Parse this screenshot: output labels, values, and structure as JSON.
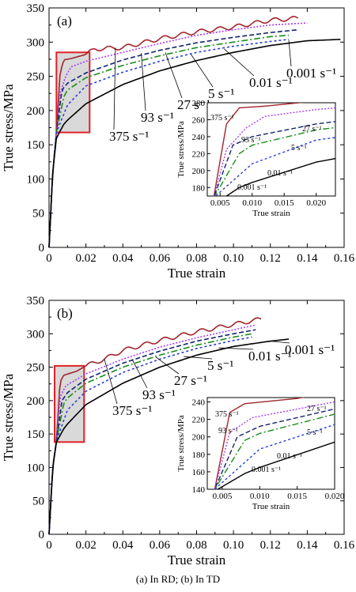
{
  "caption": "(a) In RD; (b) In TD",
  "chart_data": [
    {
      "type": "line",
      "panel_label": "(a)",
      "xlabel": "True strain",
      "ylabel": "True stress/MPa",
      "xlim": [
        0,
        0.16
      ],
      "ylim": [
        0,
        350
      ],
      "x_ticks": [
        "0",
        "0.02",
        "0.04",
        "0.06",
        "0.08",
        "0.10",
        "0.12",
        "0.14",
        "0.16"
      ],
      "y_ticks": [
        "0",
        "50",
        "100",
        "150",
        "200",
        "250",
        "300",
        "350"
      ],
      "highlight_box": {
        "x": [
          0.004,
          0.022
        ],
        "y": [
          168,
          285
        ]
      },
      "series": [
        {
          "name": "375 s⁻¹",
          "color": "#a0262c",
          "dash": "",
          "label": "375 s⁻¹",
          "points": [
            [
              0,
              0
            ],
            [
              0.002,
              110
            ],
            [
              0.004,
              168
            ],
            [
              0.006,
              255
            ],
            [
              0.008,
              274
            ],
            [
              0.012,
              276
            ],
            [
              0.02,
              282
            ],
            [
              0.025,
              290
            ],
            [
              0.04,
              292
            ],
            [
              0.06,
              305
            ],
            [
              0.08,
              315
            ],
            [
              0.1,
              322
            ],
            [
              0.12,
              332
            ],
            [
              0.135,
              335
            ]
          ],
          "wavy": true
        },
        {
          "name": "93 s⁻¹",
          "color": "#a73cf2",
          "dash": "2,2",
          "label": "93 s⁻¹",
          "points": [
            [
              0,
              0
            ],
            [
              0.002,
              110
            ],
            [
              0.004,
              168
            ],
            [
              0.006,
              225
            ],
            [
              0.009,
              250
            ],
            [
              0.012,
              264
            ],
            [
              0.02,
              272
            ],
            [
              0.04,
              285
            ],
            [
              0.06,
              298
            ],
            [
              0.08,
              310
            ],
            [
              0.1,
              318
            ],
            [
              0.12,
              325
            ],
            [
              0.14,
              328
            ]
          ]
        },
        {
          "name": "27 s⁻¹",
          "color": "#14236e",
          "dash": "6,3",
          "label": "27 s⁻¹",
          "points": [
            [
              0,
              0
            ],
            [
              0.002,
              110
            ],
            [
              0.004,
              168
            ],
            [
              0.007,
              230
            ],
            [
              0.01,
              240
            ],
            [
              0.02,
              255
            ],
            [
              0.04,
              274
            ],
            [
              0.06,
              288
            ],
            [
              0.08,
              299
            ],
            [
              0.1,
              307
            ],
            [
              0.12,
              314
            ],
            [
              0.135,
              318
            ]
          ]
        },
        {
          "name": "5 s⁻¹",
          "color": "#1a8c1a",
          "dash": "8,3,2,3",
          "label": "5 s⁻¹",
          "points": [
            [
              0,
              0
            ],
            [
              0.002,
              110
            ],
            [
              0.004,
              168
            ],
            [
              0.008,
              220
            ],
            [
              0.01,
              230
            ],
            [
              0.02,
              248
            ],
            [
              0.04,
              266
            ],
            [
              0.06,
              280
            ],
            [
              0.08,
              292
            ],
            [
              0.1,
              300
            ],
            [
              0.12,
              308
            ],
            [
              0.13,
              310
            ]
          ]
        },
        {
          "name": "0.01 s⁻¹",
          "color": "#2a3fd8",
          "dash": "3,3",
          "label": "0.01 s⁻¹",
          "points": [
            [
              0,
              0
            ],
            [
              0.002,
              110
            ],
            [
              0.004,
              168
            ],
            [
              0.01,
              208
            ],
            [
              0.02,
              236
            ],
            [
              0.04,
              256
            ],
            [
              0.06,
              272
            ],
            [
              0.08,
              285
            ],
            [
              0.1,
              294
            ],
            [
              0.12,
              301
            ],
            [
              0.13,
              304
            ]
          ]
        },
        {
          "name": "0.001 s⁻¹",
          "color": "#000000",
          "dash": "",
          "label": "0.001 s⁻¹",
          "points": [
            [
              0,
              0
            ],
            [
              0.002,
              110
            ],
            [
              0.004,
              160
            ],
            [
              0.008,
              180
            ],
            [
              0.01,
              186
            ],
            [
              0.02,
              210
            ],
            [
              0.04,
              238
            ],
            [
              0.06,
              258
            ],
            [
              0.08,
              273
            ],
            [
              0.1,
              285
            ],
            [
              0.12,
              295
            ],
            [
              0.14,
              302
            ],
            [
              0.158,
              304
            ]
          ]
        }
      ],
      "inset": {
        "xlabel": "True strain",
        "ylabel": "True stress/MPa",
        "xlim": [
          0.003,
          0.023
        ],
        "ylim": [
          170,
          280
        ],
        "x_ticks": [
          "0.005",
          "0.010",
          "0.015",
          "0.020"
        ],
        "x_tick_values": [
          0.005,
          0.01,
          0.015,
          0.02
        ],
        "y_ticks": [
          "180",
          "200",
          "220",
          "240",
          "260",
          "280"
        ],
        "y_tick_values": [
          180,
          200,
          220,
          240,
          260,
          280
        ],
        "labels": [
          "375 s⁻¹",
          "93 s⁻¹",
          "27 s⁻¹",
          "5 s⁻¹",
          "0.01 s⁻¹",
          "0.001 s⁻¹"
        ]
      }
    },
    {
      "type": "line",
      "panel_label": "(b)",
      "xlabel": "True strain",
      "ylabel": "True stress/MPa",
      "xlim": [
        0,
        0.16
      ],
      "ylim": [
        0,
        350
      ],
      "x_ticks": [
        "0",
        "0.02",
        "0.04",
        "0.06",
        "0.08",
        "0.10",
        "0.12",
        "0.14",
        "0.16"
      ],
      "y_ticks": [
        "0",
        "50",
        "100",
        "150",
        "200",
        "250",
        "300",
        "350"
      ],
      "highlight_box": {
        "x": [
          0.003,
          0.019
        ],
        "y": [
          138,
          252
        ]
      },
      "series": [
        {
          "name": "375 s⁻¹",
          "color": "#a0262c",
          "dash": "",
          "label": "375 s⁻¹",
          "points": [
            [
              0,
              0
            ],
            [
              0.002,
              100
            ],
            [
              0.004,
              140
            ],
            [
              0.006,
              228
            ],
            [
              0.008,
              238
            ],
            [
              0.015,
              244
            ],
            [
              0.02,
              252
            ],
            [
              0.03,
              262
            ],
            [
              0.04,
              275
            ],
            [
              0.06,
              290
            ],
            [
              0.08,
              303
            ],
            [
              0.1,
              314
            ],
            [
              0.115,
              322
            ]
          ],
          "wavy": true
        },
        {
          "name": "93 s⁻¹",
          "color": "#a73cf2",
          "dash": "2,2",
          "label": "93 s⁻¹",
          "points": [
            [
              0,
              0
            ],
            [
              0.002,
              100
            ],
            [
              0.004,
              140
            ],
            [
              0.006,
              205
            ],
            [
              0.009,
              222
            ],
            [
              0.02,
              240
            ],
            [
              0.04,
              262
            ],
            [
              0.06,
              280
            ],
            [
              0.08,
              294
            ],
            [
              0.1,
              306
            ],
            [
              0.112,
              313
            ]
          ]
        },
        {
          "name": "27 s⁻¹",
          "color": "#14236e",
          "dash": "6,3",
          "label": "27 s⁻¹",
          "points": [
            [
              0,
              0
            ],
            [
              0.002,
              100
            ],
            [
              0.004,
              140
            ],
            [
              0.007,
              200
            ],
            [
              0.01,
              212
            ],
            [
              0.02,
              232
            ],
            [
              0.04,
              256
            ],
            [
              0.06,
              274
            ],
            [
              0.08,
              289
            ],
            [
              0.1,
              300
            ],
            [
              0.112,
              306
            ]
          ]
        },
        {
          "name": "5 s⁻¹",
          "color": "#1a8c1a",
          "dash": "8,3,2,3",
          "label": "5 s⁻¹",
          "points": [
            [
              0,
              0
            ],
            [
              0.002,
              100
            ],
            [
              0.004,
              140
            ],
            [
              0.008,
              196
            ],
            [
              0.01,
              204
            ],
            [
              0.02,
              226
            ],
            [
              0.04,
              250
            ],
            [
              0.06,
              268
            ],
            [
              0.08,
              283
            ],
            [
              0.1,
              295
            ],
            [
              0.11,
              300
            ]
          ]
        },
        {
          "name": "0.01 s⁻¹",
          "color": "#2a3fd8",
          "dash": "3,3",
          "label": "0.01 s⁻¹",
          "points": [
            [
              0,
              0
            ],
            [
              0.002,
              100
            ],
            [
              0.004,
              140
            ],
            [
              0.01,
              186
            ],
            [
              0.02,
              214
            ],
            [
              0.04,
              242
            ],
            [
              0.06,
              262
            ],
            [
              0.08,
              278
            ],
            [
              0.1,
              290
            ],
            [
              0.11,
              295
            ]
          ]
        },
        {
          "name": "0.001 s⁻¹",
          "color": "#000000",
          "dash": "",
          "label": "0.001 s⁻¹",
          "points": [
            [
              0,
              0
            ],
            [
              0.002,
              100
            ],
            [
              0.004,
              138
            ],
            [
              0.008,
              158
            ],
            [
              0.01,
              165
            ],
            [
              0.02,
              194
            ],
            [
              0.04,
              226
            ],
            [
              0.06,
              250
            ],
            [
              0.08,
              268
            ],
            [
              0.1,
              281
            ],
            [
              0.12,
              289
            ],
            [
              0.13,
              292
            ]
          ]
        }
      ],
      "inset": {
        "xlabel": "True strain",
        "ylabel": "True stress/MPa",
        "xlim": [
          0.003,
          0.02
        ],
        "ylim": [
          140,
          245
        ],
        "x_ticks": [
          "0.005",
          "0.010",
          "0.015",
          "0.020"
        ],
        "x_tick_values": [
          0.005,
          0.01,
          0.015,
          0.02
        ],
        "y_ticks": [
          "140",
          "160",
          "180",
          "200",
          "220",
          "240"
        ],
        "y_tick_values": [
          140,
          160,
          180,
          200,
          220,
          240
        ],
        "labels": [
          "375 s⁻¹",
          "93 s⁻¹",
          "27 s⁻¹",
          "5 s⁻¹",
          "0.01 s⁻¹",
          "0.001 s⁻¹"
        ]
      }
    }
  ]
}
